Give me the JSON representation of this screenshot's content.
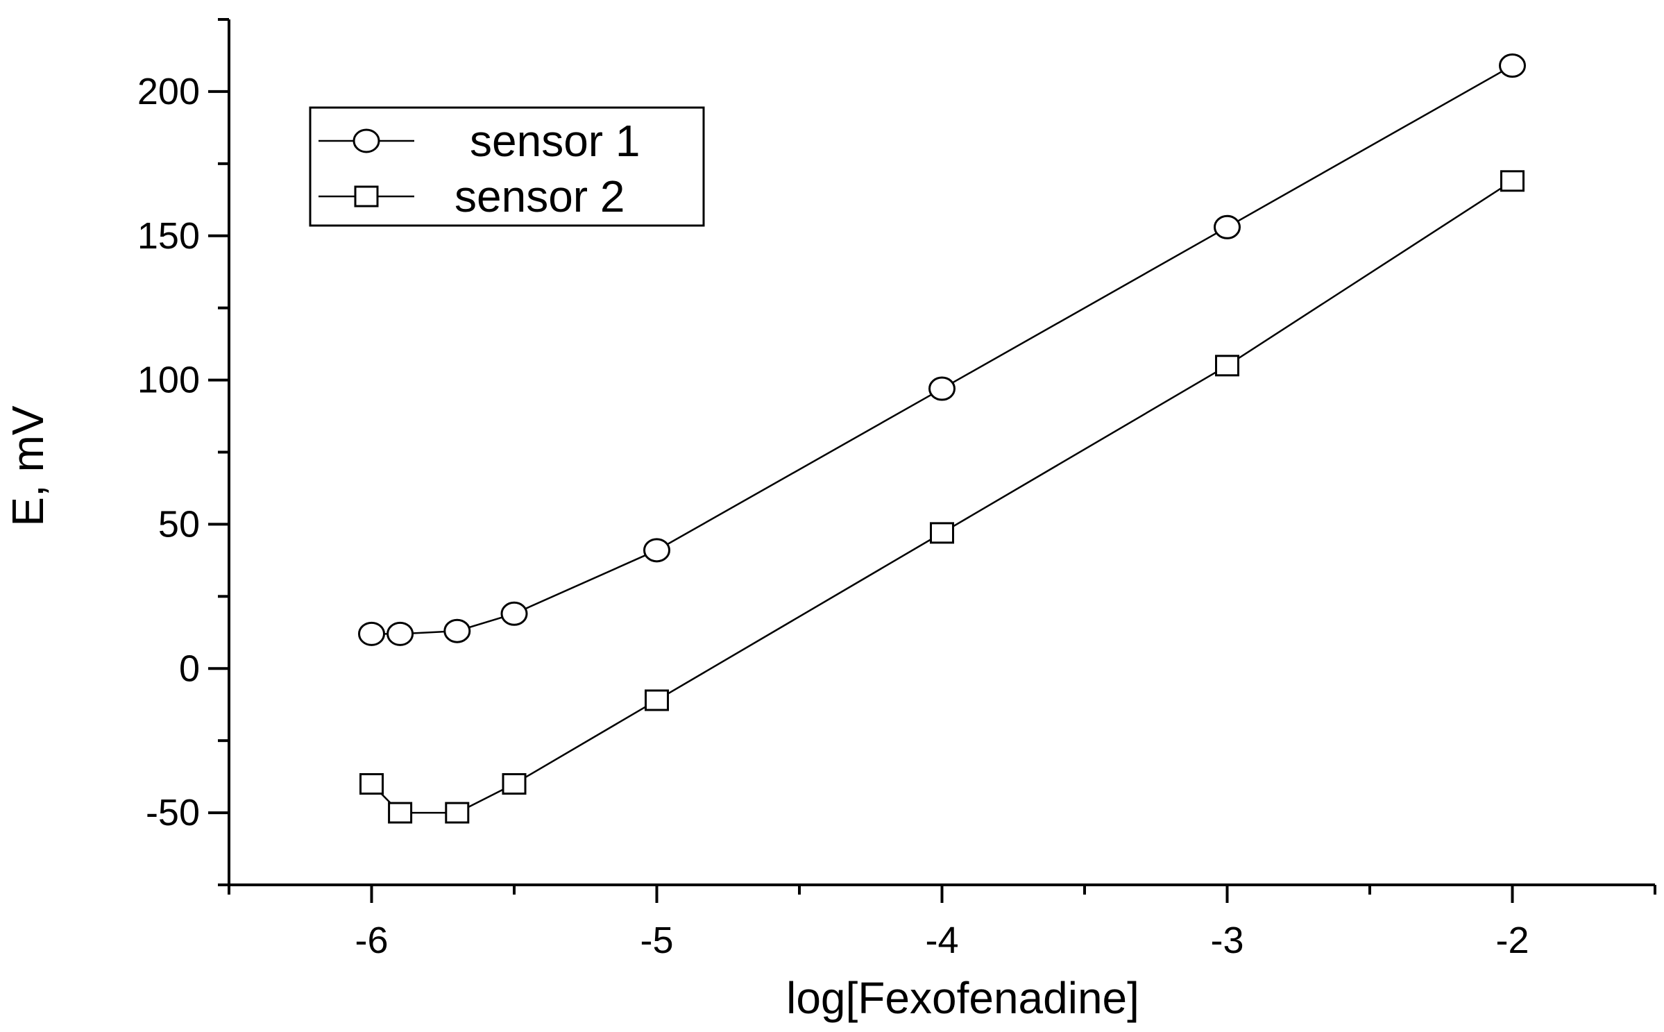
{
  "chart_data": {
    "type": "line",
    "xlabel": "log[Fexofenadine]",
    "ylabel": "E, mV",
    "xlim": [
      -6.5,
      -1.5
    ],
    "ylim": [
      -75,
      225
    ],
    "x_major_ticks": [
      -6,
      -5,
      -4,
      -3,
      -2
    ],
    "x_tick_labels": [
      "-6",
      "-5",
      "-4",
      "-3",
      "-2"
    ],
    "y_major_ticks": [
      -50,
      0,
      50,
      100,
      150,
      200
    ],
    "y_tick_labels": [
      "-50",
      "0",
      "50",
      "100",
      "150",
      "200"
    ],
    "grid": false,
    "legend_position": "top-left",
    "series": [
      {
        "name": "sensor 1",
        "marker": "circle",
        "x": [
          -6,
          -5.9,
          -5.7,
          -5.5,
          -5,
          -4,
          -3,
          -2
        ],
        "y": [
          12,
          12,
          13,
          19,
          41,
          97,
          153,
          209
        ]
      },
      {
        "name": "sensor 2",
        "marker": "square",
        "x": [
          -6,
          -5.9,
          -5.7,
          -5.5,
          -5,
          -4,
          -3,
          -2
        ],
        "y": [
          -40,
          -50,
          -50,
          -40,
          -11,
          47,
          105,
          169
        ]
      }
    ]
  }
}
